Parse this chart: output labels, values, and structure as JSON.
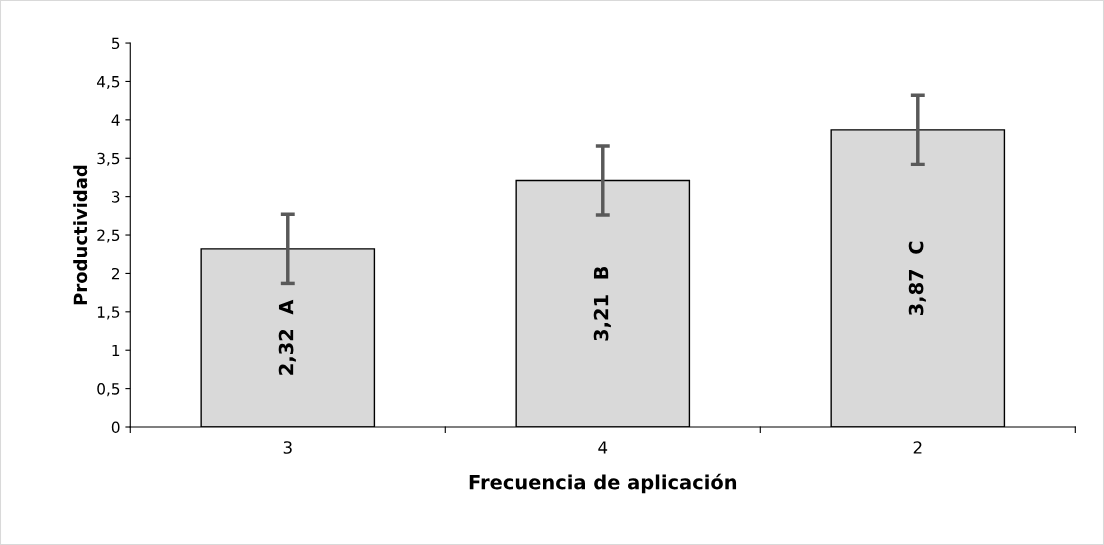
{
  "chart_data": {
    "type": "bar",
    "xlabel": "Frecuencia de aplicación",
    "ylabel": "Productividad",
    "categories": [
      "3",
      "4",
      "2"
    ],
    "values": [
      2.32,
      3.21,
      3.87
    ],
    "errors": [
      0.45,
      0.45,
      0.45
    ],
    "value_labels": [
      "2,32  A",
      "3,21  B",
      "3,87  C"
    ],
    "color": "#d9d9d9",
    "ylim": [
      0,
      5
    ],
    "yticks": [
      0,
      {
        "value": 0.5,
        "label": "0,5"
      },
      1,
      {
        "value": 1.5,
        "label": "1,5"
      },
      2,
      {
        "value": 2.5,
        "label": "2,5"
      },
      3,
      {
        "value": 3.5,
        "label": "3,5"
      },
      4,
      {
        "value": 4.5,
        "label": "4,5"
      },
      5
    ],
    "grid": false,
    "legend": false
  }
}
